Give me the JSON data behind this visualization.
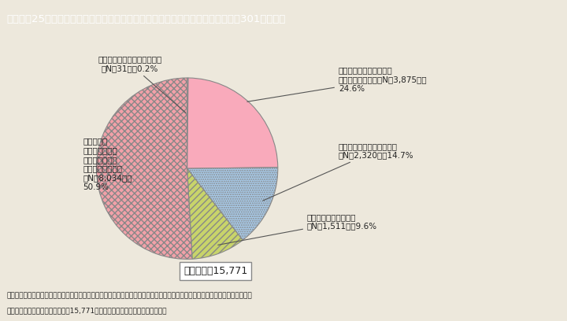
{
  "title": "Ｉ－特－25図　厚生労働省「女性の活躍推進企業データベース」への登録状況（301人以上）",
  "slices_ordered": [
    {
      "label": "行動計画を届け出ていない，\n（N＝31），0.2%",
      "value": 0.2,
      "color": "#FAEAEA",
      "hatch": ""
    },
    {
      "label": "「行動計画の公表」かつ\n「情報の公表」，（N＝3,875），\n24.6%",
      "value": 24.6,
      "color": "#F9AABB",
      "hatch": ""
    },
    {
      "label": "「行動計画の公表」のみ，\n（N＝2,320），14.7%",
      "value": 14.7,
      "color": "#A8CCEC",
      "hatch": "......"
    },
    {
      "label": "「情報の公表」のみ，\n（N＝1,511），9.6%",
      "value": 9.6,
      "color": "#C8D46A",
      "hatch": "////"
    },
    {
      "label": "行動計画を\n届け出ているが\nデータベースに\n登録していない，\n（N＝8,034），\n50.9%",
      "value": 50.9,
      "color": "#F2A0A8",
      "hatch": "xxxx"
    }
  ],
  "total_label": "事業主数：15,771",
  "bg_color": "#EDE8DC",
  "header_bg": "#4A9AAF",
  "header_text": "#FFFFFF",
  "note_line1": "（備考）１．厚生労働省「女性の活躍推進企業データベース」（平成２８年１２月末現在）より内閣府男女共同参画局にて作成。",
  "note_line2": "　　　　２．義務対象事業主数（15,771）に占める事業主の割合と数を示す。"
}
